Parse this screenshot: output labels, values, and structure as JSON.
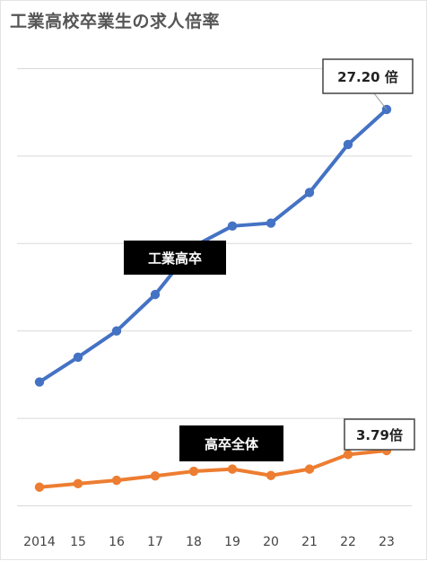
{
  "chart_data": {
    "type": "line",
    "title": "工業高校卒業生の求人倍率",
    "categories": [
      "2014",
      "15",
      "16",
      "17",
      "18",
      "19",
      "20",
      "21",
      "22",
      "23"
    ],
    "series": [
      {
        "name": "工業高卒",
        "color": "#4472c4",
        "values": [
          8.5,
          10.2,
          12.0,
          14.5,
          17.8,
          19.2,
          19.4,
          21.5,
          24.8,
          27.2
        ],
        "end_label": "27.20 倍"
      },
      {
        "name": "高卒全体",
        "color": "#ed7d31",
        "values": [
          1.28,
          1.52,
          1.75,
          2.05,
          2.37,
          2.52,
          2.08,
          2.52,
          3.52,
          3.79
        ],
        "end_label": "3.79倍"
      }
    ],
    "ylim": [
      -2,
      32
    ],
    "y_gridlines": [
      0,
      6,
      12,
      18,
      24,
      30
    ],
    "grid": true,
    "y_tick_labels_shown": false,
    "legend": "inline labels"
  }
}
